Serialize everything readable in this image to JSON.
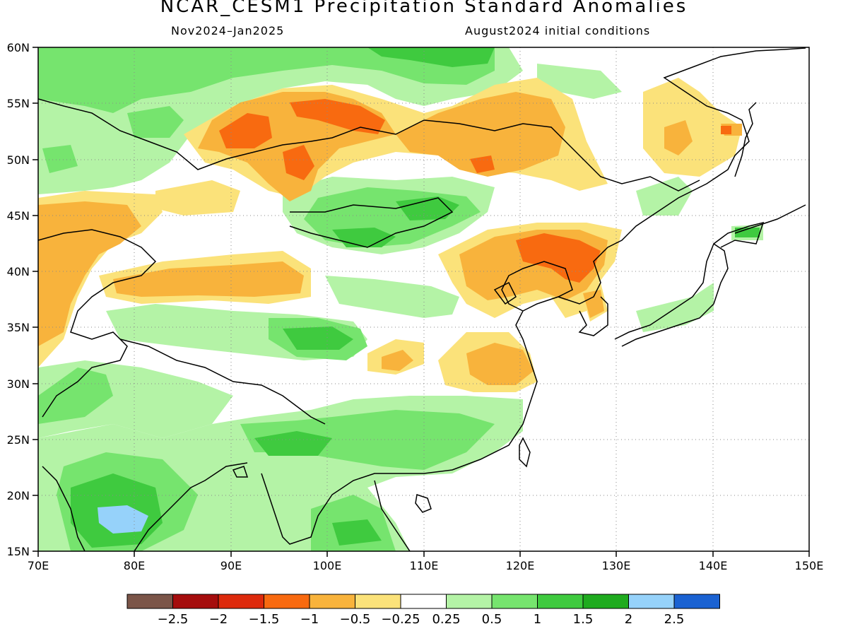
{
  "header": {
    "title": "NCAR_CESM1 Precipitation Standard Anomalies",
    "period": "Nov2024–Jan2025",
    "init": "August2024 initial conditions"
  },
  "axes": {
    "lat_labels": [
      "60N",
      "55N",
      "50N",
      "45N",
      "40N",
      "35N",
      "30N",
      "25N",
      "20N",
      "15N"
    ],
    "lon_labels": [
      "70E",
      "80E",
      "90E",
      "100E",
      "110E",
      "120E",
      "130E",
      "140E",
      "150E"
    ]
  },
  "colorbar": {
    "colors": [
      "#7b5548",
      "#a50d0d",
      "#dd2a0c",
      "#f86a10",
      "#f8b33c",
      "#fbe27a",
      "#ffffff",
      "#b4f3a6",
      "#76e46e",
      "#3fca3f",
      "#1fab1f",
      "#96d2fa",
      "#1a62d2"
    ],
    "labels": [
      "−2.5",
      "−2",
      "−1.5",
      "−1",
      "−0.5",
      "−0.25",
      "0.25",
      "0.5",
      "1",
      "1.5",
      "2",
      "2.5"
    ]
  },
  "map": {
    "region": {
      "lon_min": 70,
      "lon_max": 150,
      "lat_min": 15,
      "lat_max": 60
    }
  }
}
